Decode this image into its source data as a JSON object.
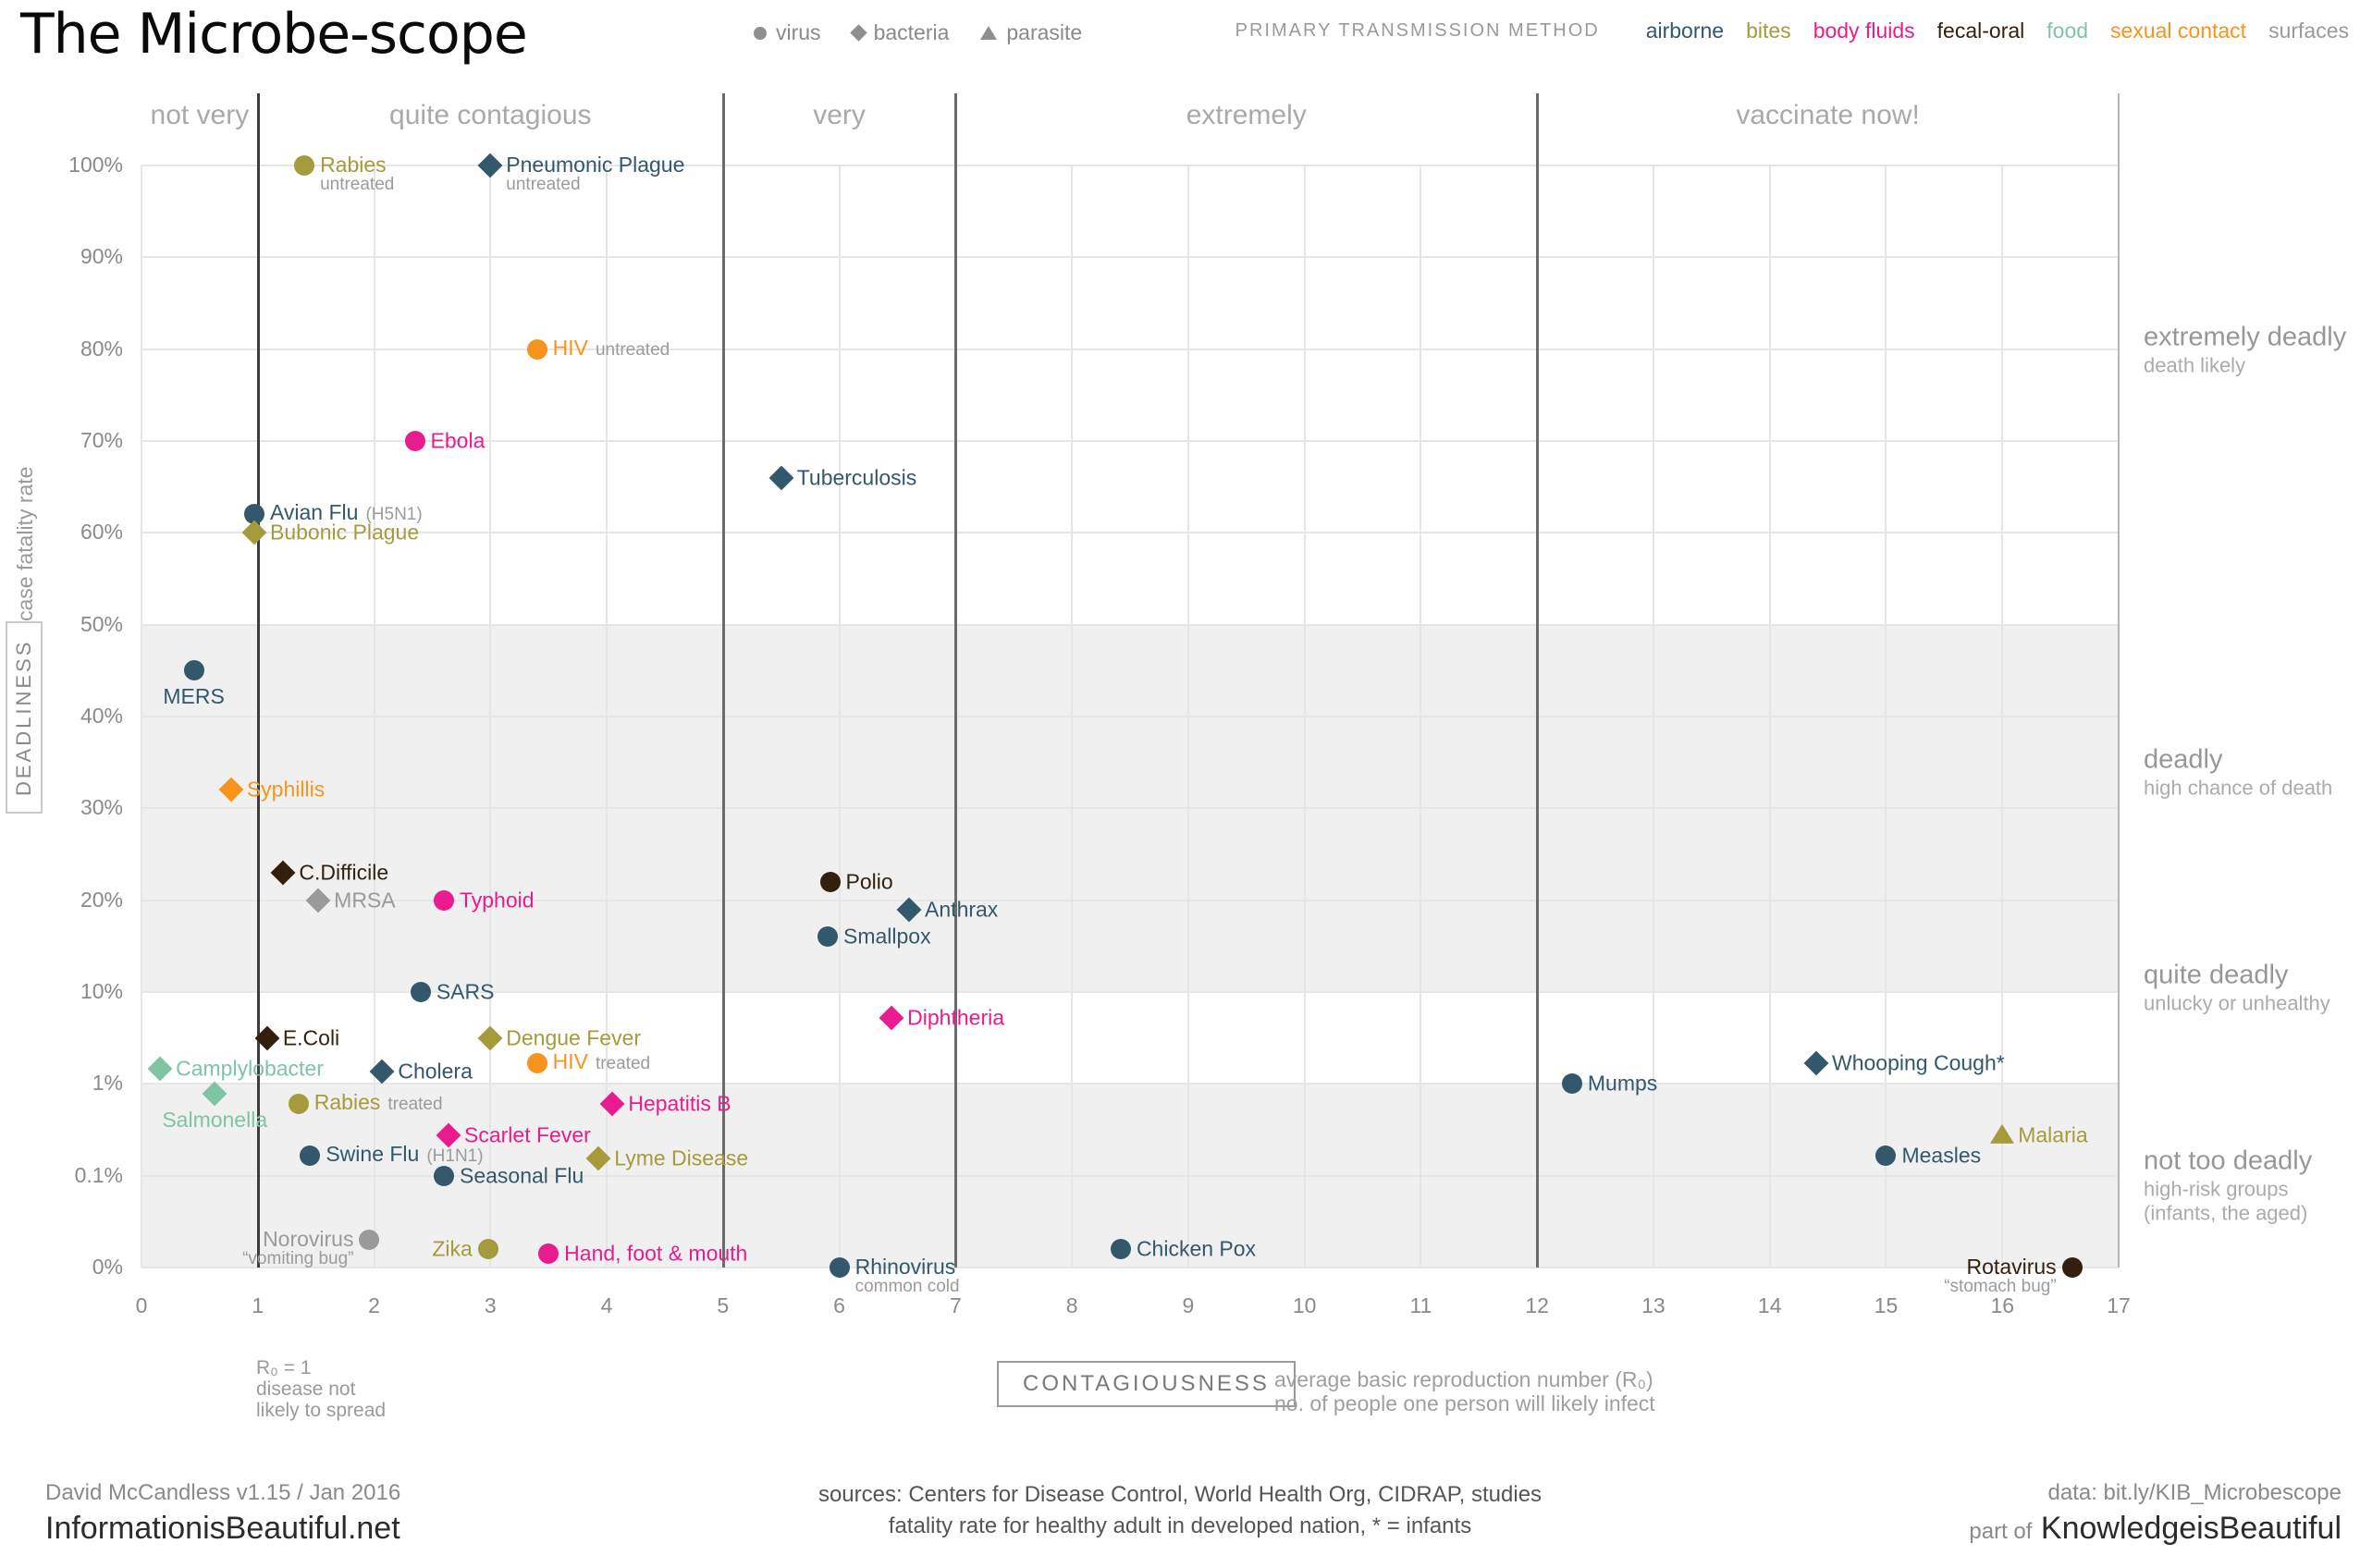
{
  "title": "The Microbe-scope",
  "shape_legend": {
    "items": [
      {
        "shape": "circle",
        "label": "virus"
      },
      {
        "shape": "diamond",
        "label": "bacteria"
      },
      {
        "shape": "triangle",
        "label": "parasite"
      }
    ]
  },
  "transmission_legend": {
    "title": "PRIMARY TRANSMISSION METHOD",
    "items": [
      {
        "label": "airborne",
        "color": "#33576b"
      },
      {
        "label": "bites",
        "color": "#a69b3c"
      },
      {
        "label": "body fluids",
        "color": "#e81c8e"
      },
      {
        "label": "fecal-oral",
        "color": "#331f0e"
      },
      {
        "label": "food",
        "color": "#7fc4a3"
      },
      {
        "label": "sexual contact",
        "color": "#f7941e"
      },
      {
        "label": "surfaces",
        "color": "#9a9a9a"
      }
    ]
  },
  "axes": {
    "y_label": "case fatality rate",
    "y_box_label": "DEADLINESS",
    "y_ticks": [
      {
        "value": 100,
        "label": "100%"
      },
      {
        "value": 90,
        "label": "90%"
      },
      {
        "value": 80,
        "label": "80%"
      },
      {
        "value": 70,
        "label": "70%"
      },
      {
        "value": 60,
        "label": "60%"
      },
      {
        "value": 50,
        "label": "50%"
      },
      {
        "value": 40,
        "label": "40%"
      },
      {
        "value": 30,
        "label": "30%"
      },
      {
        "value": 20,
        "label": "20%"
      },
      {
        "value": 10,
        "label": "10%"
      },
      {
        "value": 1,
        "label": "1%"
      },
      {
        "value": 0.1,
        "label": "0.1%"
      },
      {
        "value": 0,
        "label": "0%"
      }
    ],
    "x_ticks": [
      "0",
      "1",
      "2",
      "3",
      "4",
      "5",
      "6",
      "7",
      "8",
      "9",
      "10",
      "11",
      "12",
      "13",
      "14",
      "15",
      "16",
      "17"
    ],
    "x_box_label": "CONTAGIOUSNESS",
    "x_note_lines": [
      "average basic reproduction number (R₀)",
      "no. of people one person will likely infect"
    ],
    "r0_note_lines": [
      "R₀ = 1",
      "disease not",
      "likely to spread"
    ]
  },
  "x_zones": [
    {
      "label": "not very",
      "center_r0": 0.5
    },
    {
      "label": "quite contagious",
      "center_r0": 3
    },
    {
      "label": "very",
      "center_r0": 6
    },
    {
      "label": "extremely",
      "center_r0": 9.5
    },
    {
      "label": "vaccinate now!",
      "center_r0": 14.5
    }
  ],
  "y_zones": [
    {
      "label": "extremely deadly",
      "sublines": [
        "death likely"
      ],
      "anchor_pct": 80
    },
    {
      "label": "deadly",
      "sublines": [
        "high chance of death"
      ],
      "anchor_pct": 34
    },
    {
      "label": "quite deadly",
      "sublines": [
        "unlucky or unhealthy"
      ],
      "anchor_pct": 10.5
    },
    {
      "label": "not too deadly",
      "sublines": [
        "high-risk groups",
        "(infants, the aged)"
      ],
      "anchor_pct": 0.09
    }
  ],
  "y_bands": [
    {
      "from_pct": 50,
      "to_pct": 10
    },
    {
      "from_pct": 1,
      "to_pct": 0
    }
  ],
  "dividers_r0": [
    {
      "r0": 1,
      "strong": true
    },
    {
      "r0": 5
    },
    {
      "r0": 7
    },
    {
      "r0": 12
    },
    {
      "r0": 17,
      "light": true
    }
  ],
  "chart_data": {
    "type": "scatter",
    "title": "The Microbe-scope",
    "x_axis": {
      "label": "CONTAGIOUSNESS",
      "description": "average basic reproduction number (R0)",
      "range": [
        0,
        17
      ]
    },
    "y_axis": {
      "label": "DEADLINESS",
      "description": "case fatality rate (%)",
      "scale_ticks": [
        0,
        0.1,
        1,
        10,
        20,
        30,
        40,
        50,
        60,
        70,
        80,
        90,
        100
      ]
    },
    "points": [
      {
        "name": "Rabies",
        "note": "untreated",
        "note_layout": "stack",
        "r0": 1.4,
        "fatality_pct": 100,
        "shape": "circle",
        "transmission": "bites"
      },
      {
        "name": "Pneumonic Plague",
        "note": "untreated",
        "note_layout": "stack",
        "r0": 3.0,
        "fatality_pct": 100,
        "shape": "diamond",
        "transmission": "airborne"
      },
      {
        "name": "HIV",
        "note": "untreated",
        "note_layout": "inline",
        "r0": 3.4,
        "fatality_pct": 80,
        "shape": "circle",
        "transmission": "sexual contact"
      },
      {
        "name": "Ebola",
        "r0": 2.35,
        "fatality_pct": 70,
        "shape": "circle",
        "transmission": "body fluids"
      },
      {
        "name": "Tuberculosis",
        "r0": 5.5,
        "fatality_pct": 66,
        "shape": "diamond",
        "transmission": "airborne"
      },
      {
        "name": "Avian Flu",
        "note": "(H5N1)",
        "note_layout": "inline",
        "r0": 0.97,
        "fatality_pct": 62,
        "shape": "circle",
        "transmission": "airborne"
      },
      {
        "name": "Bubonic Plague",
        "r0": 0.97,
        "fatality_pct": 60,
        "shape": "diamond",
        "transmission": "bites"
      },
      {
        "name": "MERS",
        "r0": 0.45,
        "fatality_pct": 45,
        "shape": "circle",
        "transmission": "airborne",
        "label_side": "below"
      },
      {
        "name": "Syphillis",
        "r0": 0.77,
        "fatality_pct": 32,
        "shape": "diamond",
        "transmission": "sexual contact"
      },
      {
        "name": "C.Difficile",
        "r0": 1.22,
        "fatality_pct": 23,
        "shape": "diamond",
        "transmission": "fecal-oral"
      },
      {
        "name": "MRSA",
        "r0": 1.52,
        "fatality_pct": 20,
        "shape": "diamond",
        "transmission": "surfaces"
      },
      {
        "name": "Typhoid",
        "r0": 2.6,
        "fatality_pct": 20,
        "shape": "circle",
        "transmission": "body fluids"
      },
      {
        "name": "Polio",
        "r0": 5.92,
        "fatality_pct": 22,
        "shape": "circle",
        "transmission": "fecal-oral"
      },
      {
        "name": "Anthrax",
        "r0": 6.6,
        "fatality_pct": 19,
        "shape": "diamond",
        "transmission": "airborne"
      },
      {
        "name": "Smallpox",
        "r0": 5.9,
        "fatality_pct": 16,
        "shape": "circle",
        "transmission": "airborne"
      },
      {
        "name": "SARS",
        "r0": 2.4,
        "fatality_pct": 10,
        "shape": "circle",
        "transmission": "airborne"
      },
      {
        "name": "Diphtheria",
        "r0": 6.45,
        "fatality_pct": 7.5,
        "shape": "diamond",
        "transmission": "body fluids"
      },
      {
        "name": "Dengue Fever",
        "r0": 3.0,
        "fatality_pct": 5.5,
        "shape": "diamond",
        "transmission": "bites"
      },
      {
        "name": "E.Coli",
        "r0": 1.08,
        "fatality_pct": 5.5,
        "shape": "diamond",
        "transmission": "fecal-oral"
      },
      {
        "name": "Camplylobacter",
        "r0": 0.16,
        "fatality_pct": 2.5,
        "shape": "diamond",
        "transmission": "food"
      },
      {
        "name": "Cholera",
        "r0": 2.07,
        "fatality_pct": 2.2,
        "shape": "diamond",
        "transmission": "airborne"
      },
      {
        "name": "HIV",
        "note": "treated",
        "note_layout": "inline",
        "r0": 3.4,
        "fatality_pct": 3.0,
        "shape": "circle",
        "transmission": "sexual contact"
      },
      {
        "name": "Mumps",
        "r0": 12.3,
        "fatality_pct": 1.0,
        "shape": "circle",
        "transmission": "airborne"
      },
      {
        "name": "Whooping Cough*",
        "r0": 14.4,
        "fatality_pct": 3.0,
        "shape": "diamond",
        "transmission": "airborne"
      },
      {
        "name": "Salmonella",
        "r0": 0.63,
        "fatality_pct": 0.9,
        "shape": "diamond",
        "transmission": "food",
        "label_side": "below"
      },
      {
        "name": "Rabies",
        "note": "treated",
        "note_layout": "inline",
        "r0": 1.35,
        "fatality_pct": 0.8,
        "shape": "circle",
        "transmission": "bites"
      },
      {
        "name": "Hepatitis B",
        "r0": 4.05,
        "fatality_pct": 0.8,
        "shape": "diamond",
        "transmission": "body fluids"
      },
      {
        "name": "Scarlet Fever",
        "r0": 2.64,
        "fatality_pct": 0.5,
        "shape": "diamond",
        "transmission": "body fluids"
      },
      {
        "name": "Swine Flu",
        "note": "(H1N1)",
        "note_layout": "inline",
        "r0": 1.45,
        "fatality_pct": 0.3,
        "shape": "circle",
        "transmission": "airborne"
      },
      {
        "name": "Lyme Disease",
        "r0": 3.93,
        "fatality_pct": 0.27,
        "shape": "diamond",
        "transmission": "bites"
      },
      {
        "name": "Seasonal Flu",
        "r0": 2.6,
        "fatality_pct": 0.1,
        "shape": "circle",
        "transmission": "airborne"
      },
      {
        "name": "Measles",
        "r0": 15.0,
        "fatality_pct": 0.3,
        "shape": "circle",
        "transmission": "airborne"
      },
      {
        "name": "Malaria",
        "r0": 16.0,
        "fatality_pct": 0.5,
        "shape": "triangle",
        "transmission": "bites"
      },
      {
        "name": "Norovirus",
        "note": "“vomiting bug”",
        "note_layout": "stack",
        "r0": 1.96,
        "fatality_pct": 0.03,
        "shape": "circle",
        "transmission": "surfaces",
        "label_side": "left"
      },
      {
        "name": "Zika",
        "r0": 2.98,
        "fatality_pct": 0.02,
        "shape": "circle",
        "transmission": "bites",
        "label_side": "left"
      },
      {
        "name": "Hand, foot & mouth",
        "r0": 3.5,
        "fatality_pct": 0.015,
        "shape": "circle",
        "transmission": "body fluids"
      },
      {
        "name": "Rhinovirus",
        "note": "common cold",
        "note_layout": "stack",
        "r0": 6.0,
        "fatality_pct": 0,
        "shape": "circle",
        "transmission": "airborne"
      },
      {
        "name": "Chicken Pox",
        "r0": 8.42,
        "fatality_pct": 0.02,
        "shape": "circle",
        "transmission": "airborne"
      },
      {
        "name": "Rotavirus",
        "note": "“stomach bug”",
        "note_layout": "stack",
        "r0": 16.6,
        "fatality_pct": 0,
        "shape": "circle",
        "transmission": "fecal-oral",
        "label_side": "left"
      }
    ]
  },
  "footer": {
    "credit_line": "David McCandless v1.15 / Jan 2016",
    "site": "InformationisBeautiful.net",
    "sources_line": "sources: Centers for Disease Control, World Health Org, CIDRAP, studies",
    "note_line": "fatality rate for healthy adult in developed nation, * = infants",
    "data_line": "data: bit.ly/KIB_Microbescope",
    "part_of": "part of",
    "brand": "KnowledgeisBeautiful"
  }
}
